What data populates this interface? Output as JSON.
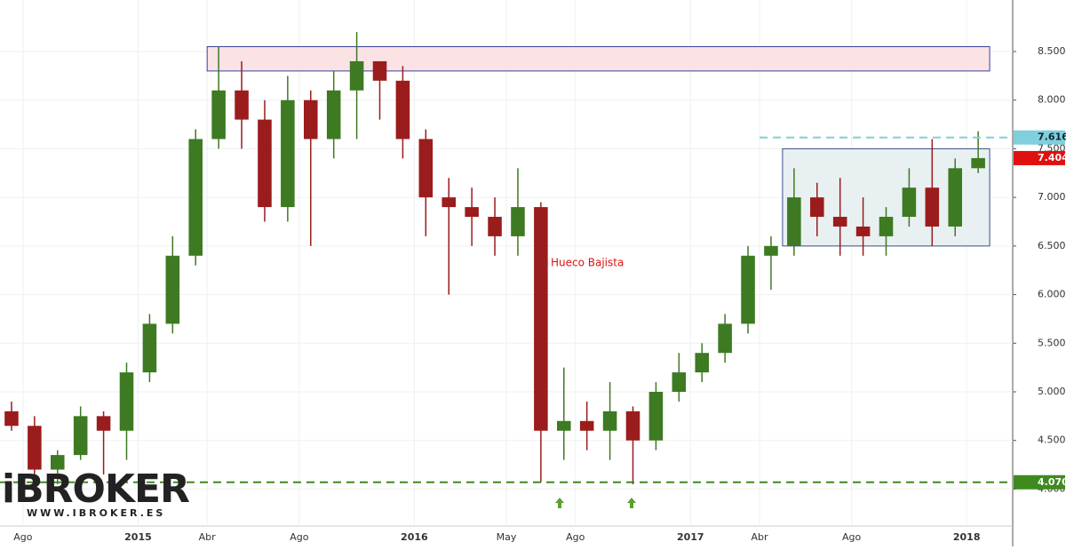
{
  "chart_data": {
    "type": "candlestick",
    "x": [
      "2014-07",
      "2014-08",
      "2014-09",
      "2014-10",
      "2014-11",
      "2014-12",
      "2015-01",
      "2015-02",
      "2015-03",
      "2015-04",
      "2015-05",
      "2015-06",
      "2015-07",
      "2015-08",
      "2015-09",
      "2015-10",
      "2015-11",
      "2015-12",
      "2016-01",
      "2016-02",
      "2016-03",
      "2016-04",
      "2016-05",
      "2016-06",
      "2016-07",
      "2016-08",
      "2016-09",
      "2016-10",
      "2016-11",
      "2016-12",
      "2017-01",
      "2017-02",
      "2017-03",
      "2017-04",
      "2017-05",
      "2017-06",
      "2017-07",
      "2017-08",
      "2017-09",
      "2017-10",
      "2017-11",
      "2017-12",
      "2018-01"
    ],
    "open": [
      4.8,
      4.65,
      4.2,
      4.35,
      4.75,
      4.6,
      5.2,
      5.7,
      6.4,
      7.6,
      8.1,
      7.8,
      6.9,
      8.0,
      7.6,
      8.1,
      8.4,
      8.2,
      7.6,
      7.0,
      6.9,
      6.8,
      6.6,
      6.9,
      4.6,
      4.7,
      4.6,
      4.8,
      4.5,
      5.0,
      5.2,
      5.4,
      5.7,
      6.4,
      6.5,
      7.0,
      6.8,
      6.7,
      6.6,
      6.8,
      7.1,
      6.7,
      7.3
    ],
    "high": [
      4.9,
      4.75,
      4.4,
      4.85,
      4.8,
      5.3,
      5.8,
      6.6,
      7.7,
      8.55,
      8.4,
      8.0,
      8.25,
      8.1,
      8.3,
      8.7,
      8.4,
      8.35,
      7.7,
      7.2,
      7.1,
      7.0,
      7.3,
      6.95,
      5.25,
      4.9,
      5.1,
      4.85,
      5.1,
      5.4,
      5.5,
      5.8,
      6.5,
      6.6,
      7.3,
      7.15,
      7.2,
      7.0,
      6.9,
      7.3,
      7.6,
      7.4,
      7.68
    ],
    "low": [
      4.6,
      4.05,
      4.05,
      4.3,
      4.15,
      4.3,
      5.1,
      5.6,
      6.3,
      7.5,
      7.5,
      6.75,
      6.75,
      6.5,
      7.4,
      7.6,
      7.8,
      7.4,
      6.6,
      6.0,
      6.5,
      6.4,
      6.4,
      4.07,
      4.3,
      4.4,
      4.3,
      4.05,
      4.4,
      4.9,
      5.1,
      5.3,
      5.6,
      6.05,
      6.4,
      6.6,
      6.4,
      6.4,
      6.4,
      6.7,
      6.5,
      6.6,
      7.25
    ],
    "close": [
      4.65,
      4.2,
      4.35,
      4.75,
      4.6,
      5.2,
      5.7,
      6.4,
      7.6,
      8.1,
      7.8,
      6.9,
      8.0,
      7.6,
      8.1,
      8.4,
      8.2,
      7.6,
      7.0,
      6.9,
      6.8,
      6.6,
      6.9,
      4.6,
      4.7,
      4.6,
      4.8,
      4.5,
      5.0,
      5.2,
      5.4,
      5.7,
      6.4,
      6.5,
      7.0,
      6.8,
      6.7,
      6.6,
      6.8,
      7.1,
      6.7,
      7.3,
      7.404
    ],
    "up_color": "#3d7a22",
    "down_color": "#9b1c1c",
    "xlim": [
      "2014-07",
      "2018-03"
    ],
    "xticks": [
      {
        "value": "2014-08",
        "label": "Ago"
      },
      {
        "value": "2015-01",
        "label": "2015"
      },
      {
        "value": "2015-04",
        "label": "Abr"
      },
      {
        "value": "2015-08",
        "label": "Ago"
      },
      {
        "value": "2016-01",
        "label": "2016"
      },
      {
        "value": "2016-05",
        "label": "May"
      },
      {
        "value": "2016-08",
        "label": "Ago"
      },
      {
        "value": "2017-01",
        "label": "2017"
      },
      {
        "value": "2017-04",
        "label": "Abr"
      },
      {
        "value": "2017-08",
        "label": "Ago"
      },
      {
        "value": "2018-01",
        "label": "2018"
      }
    ],
    "ylim": [
      3.62,
      9.03
    ],
    "yticks": [
      {
        "value": 4,
        "label": "4.000"
      },
      {
        "value": 4.5,
        "label": "4.500"
      },
      {
        "value": 5,
        "label": "5.000"
      },
      {
        "value": 5.5,
        "label": "5.500"
      },
      {
        "value": 6,
        "label": "6.000"
      },
      {
        "value": 6.5,
        "label": "6.500"
      },
      {
        "value": 7,
        "label": "7.000"
      },
      {
        "value": 7.5,
        "label": "7.500"
      },
      {
        "value": 8,
        "label": "8.000"
      },
      {
        "value": 8.5,
        "label": "8.500"
      }
    ],
    "grid": true,
    "zones": [
      {
        "from": "2015-04",
        "to": "2018-02",
        "low": 8.3,
        "high": 8.55,
        "fill": "#f9dfe2",
        "stroke": "#3a3f9a"
      },
      {
        "from": "2017-05",
        "to": "2018-02",
        "low": 6.5,
        "high": 7.5,
        "fill": "#e6eef1",
        "stroke": "#3a4f8a"
      }
    ],
    "levels": [
      {
        "value": 4.07,
        "label": "4.070",
        "color": "#3f8a1e",
        "from": "2014-07"
      },
      {
        "value": 7.616,
        "label": "7.616",
        "color": "#7fcfdc",
        "from": "2017-04"
      }
    ],
    "last_color": "#e01010",
    "annotation": {
      "text": "Hueco Bajista",
      "color": "#e01010"
    }
  },
  "logo": {
    "brand": "iBROKER",
    "url": "WWW.IBROKER.ES"
  }
}
